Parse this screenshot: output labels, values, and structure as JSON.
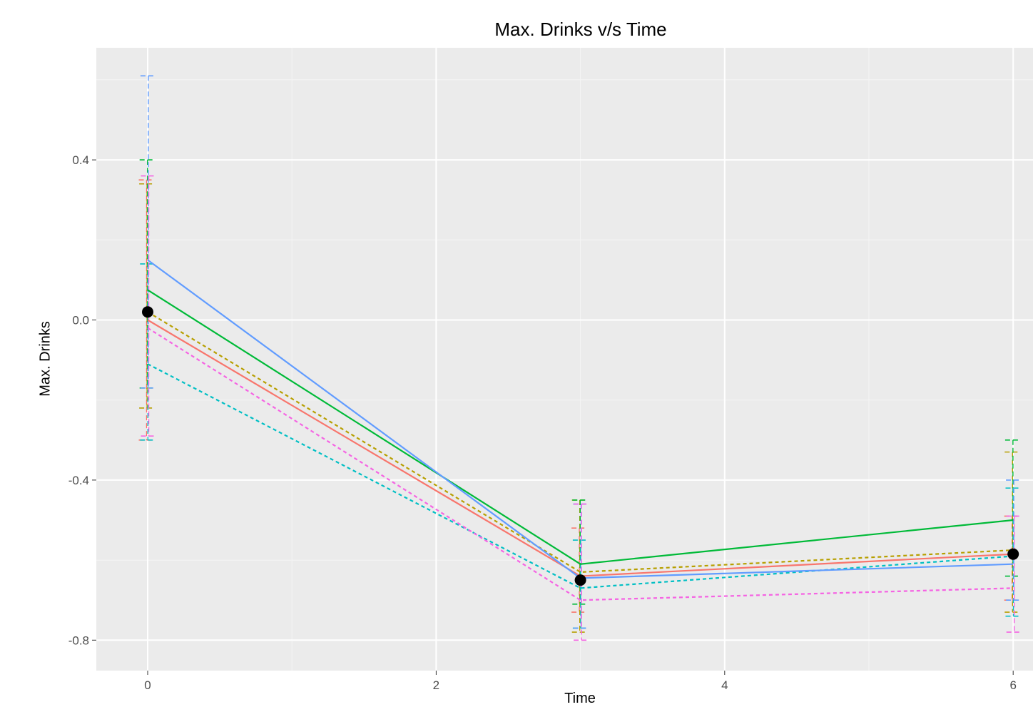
{
  "chart_data": {
    "type": "line",
    "title": "Max. Drinks v/s Time",
    "xlabel": "Time",
    "ylabel": "Max. Drinks",
    "xlim": [
      -0.35,
      6.1
    ],
    "ylim": [
      -0.87,
      0.68
    ],
    "x_ticks": [
      0,
      2,
      4,
      6
    ],
    "y_ticks": [
      0.4,
      0.0,
      -0.4,
      -0.8
    ],
    "y_tick_labels": [
      "0.4",
      "0.0",
      "-0.4",
      "-0.8"
    ],
    "grid": true,
    "x": [
      0,
      3,
      6
    ],
    "series": [
      {
        "color": "#F8766D",
        "linetype": "solid",
        "values": [
          0.0,
          -0.64,
          -0.585
        ],
        "error_low": [
          -0.3,
          -0.73,
          -0.7
        ],
        "error_high": [
          0.35,
          -0.52,
          -0.49
        ]
      },
      {
        "color": "#B79F00",
        "linetype": "dashed",
        "values": [
          0.02,
          -0.63,
          -0.575
        ],
        "error_low": [
          -0.22,
          -0.78,
          -0.73
        ],
        "error_high": [
          0.34,
          -0.45,
          -0.33
        ]
      },
      {
        "color": "#00BA38",
        "linetype": "solid",
        "values": [
          0.075,
          -0.61,
          -0.5
        ],
        "error_low": [
          -0.17,
          -0.71,
          -0.64
        ],
        "error_high": [
          0.4,
          -0.45,
          -0.3
        ]
      },
      {
        "color": "#00BFC4",
        "linetype": "dashed",
        "values": [
          -0.11,
          -0.67,
          -0.59
        ],
        "error_low": [
          -0.3,
          -0.77,
          -0.74
        ],
        "error_high": [
          0.14,
          -0.55,
          -0.42
        ]
      },
      {
        "color": "#619CFF",
        "linetype": "solid",
        "values": [
          0.15,
          -0.645,
          -0.61
        ],
        "error_low": [
          -0.17,
          -0.77,
          -0.7
        ],
        "error_high": [
          0.61,
          -0.46,
          -0.4
        ]
      },
      {
        "color": "#F564E3",
        "linetype": "dashed",
        "values": [
          -0.02,
          -0.7,
          -0.67
        ],
        "error_low": [
          -0.29,
          -0.8,
          -0.78
        ],
        "error_high": [
          0.36,
          -0.46,
          -0.49
        ]
      }
    ],
    "mean_points": {
      "color": "#000000",
      "values": [
        0.02,
        -0.65,
        -0.585
      ]
    }
  }
}
